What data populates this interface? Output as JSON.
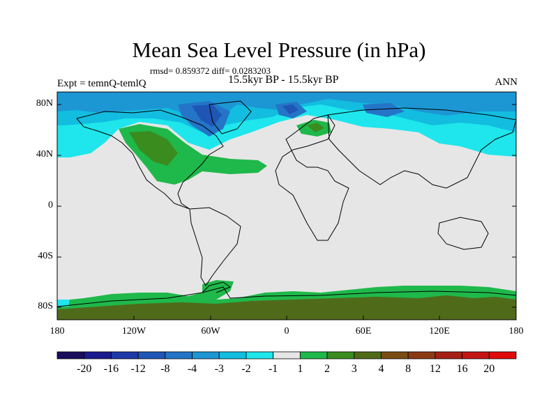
{
  "title": "Mean Sea Level Pressure (in hPa)",
  "stats": "rmsd= 0.859372 diff= 0.0283203",
  "subtitle": "15.5kyr BP - 15.5kyr BP",
  "experiment": "Expt = temnQ-temlQ",
  "season": "ANN",
  "lat_ticks": [
    "80N",
    "40N",
    "0",
    "40S",
    "80S"
  ],
  "lon_ticks": [
    "180",
    "120W",
    "60W",
    "0",
    "60E",
    "120E",
    "180"
  ],
  "colorbar": {
    "labels": [
      "-20",
      "-16",
      "-12",
      "-8",
      "-4",
      "-3",
      "-2",
      "-1",
      "1",
      "2",
      "3",
      "4",
      "8",
      "12",
      "16",
      "20"
    ],
    "colors": [
      "#1a0d5e",
      "#1a1a8c",
      "#1f3aa6",
      "#1f55b5",
      "#2474c7",
      "#1d97d4",
      "#12bde0",
      "#1ee6ec",
      "#e6e6e6",
      "#1fb84a",
      "#3b8c1f",
      "#4f6b1a",
      "#7a4d14",
      "#8c3a14",
      "#a61f14",
      "#c41414",
      "#e00a0a"
    ]
  }
}
